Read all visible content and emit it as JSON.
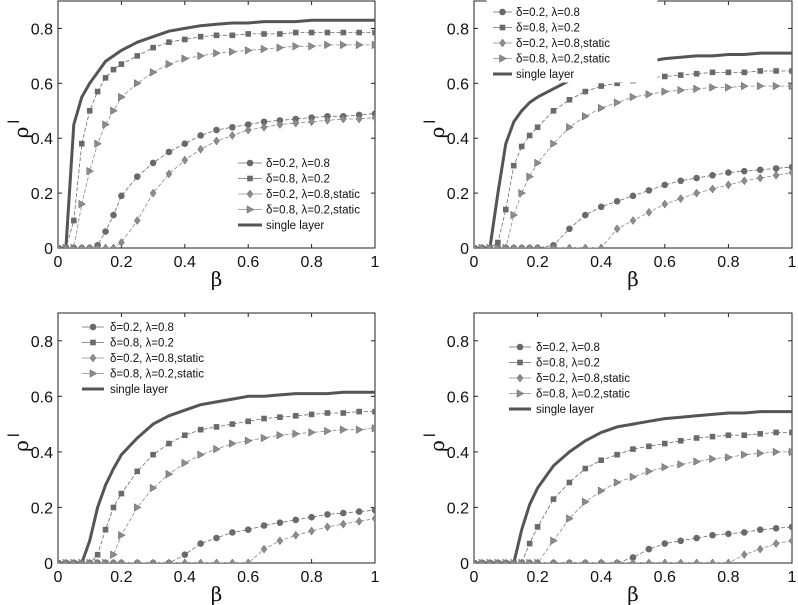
{
  "chart_data": [
    {
      "type": "line",
      "xlabel": "β",
      "ylabel": "ρ",
      "ylabel_sup": "l",
      "xlim": [
        0,
        1
      ],
      "ylim": [
        0,
        0.9
      ],
      "xticks": [
        "0",
        "0.2",
        "0.4",
        "0.6",
        "0.8",
        "1"
      ],
      "yticks": [
        "0",
        "0.2",
        "0.4",
        "0.6",
        "0.8"
      ],
      "legend_placement": "bottom-right",
      "x": [
        0,
        0.025,
        0.05,
        0.075,
        0.1,
        0.125,
        0.15,
        0.175,
        0.2,
        0.25,
        0.3,
        0.35,
        0.4,
        0.45,
        0.5,
        0.55,
        0.6,
        0.65,
        0.7,
        0.75,
        0.8,
        0.85,
        0.9,
        0.95,
        1
      ],
      "series": [
        {
          "name": "δ=0.2, λ=0.8",
          "marker": "circle",
          "values": [
            0,
            0,
            0,
            0,
            0,
            0.01,
            0.06,
            0.12,
            0.19,
            0.26,
            0.31,
            0.35,
            0.38,
            0.41,
            0.43,
            0.44,
            0.45,
            0.46,
            0.465,
            0.47,
            0.475,
            0.48,
            0.48,
            0.485,
            0.49
          ]
        },
        {
          "name": "δ=0.8, λ=0.2",
          "marker": "square",
          "values": [
            0,
            0,
            0.1,
            0.38,
            0.5,
            0.57,
            0.62,
            0.65,
            0.67,
            0.7,
            0.73,
            0.75,
            0.76,
            0.77,
            0.775,
            0.775,
            0.78,
            0.78,
            0.78,
            0.785,
            0.785,
            0.785,
            0.785,
            0.785,
            0.785
          ]
        },
        {
          "name": "δ=0.2, λ=0.8,static",
          "marker": "diamond",
          "values": [
            0,
            0,
            0,
            0,
            0,
            0,
            0,
            0,
            0.02,
            0.1,
            0.2,
            0.27,
            0.32,
            0.36,
            0.39,
            0.41,
            0.43,
            0.44,
            0.45,
            0.455,
            0.46,
            0.465,
            0.47,
            0.47,
            0.475
          ]
        },
        {
          "name": "δ=0.8, λ=0.2,static",
          "marker": "triangle-right",
          "values": [
            0,
            0,
            0,
            0.16,
            0.28,
            0.38,
            0.45,
            0.5,
            0.55,
            0.6,
            0.64,
            0.67,
            0.69,
            0.7,
            0.71,
            0.715,
            0.72,
            0.725,
            0.73,
            0.735,
            0.735,
            0.74,
            0.74,
            0.74,
            0.74
          ]
        },
        {
          "name": "single layer",
          "marker": "none",
          "values": [
            0,
            0,
            0.45,
            0.55,
            0.6,
            0.64,
            0.68,
            0.7,
            0.72,
            0.75,
            0.77,
            0.79,
            0.8,
            0.81,
            0.815,
            0.82,
            0.82,
            0.825,
            0.825,
            0.825,
            0.83,
            0.83,
            0.83,
            0.83,
            0.83
          ]
        }
      ]
    },
    {
      "type": "line",
      "xlabel": "β",
      "ylabel": "ρ",
      "ylabel_sup": "l",
      "xlim": [
        0,
        1
      ],
      "ylim": [
        0,
        0.9
      ],
      "xticks": [
        "0",
        "0.2",
        "0.4",
        "0.6",
        "0.8",
        "1"
      ],
      "yticks": [
        "0",
        "0.2",
        "0.4",
        "0.6",
        "0.8"
      ],
      "legend_placement": "top-left",
      "x": [
        0,
        0.025,
        0.05,
        0.075,
        0.1,
        0.125,
        0.15,
        0.175,
        0.2,
        0.25,
        0.3,
        0.35,
        0.4,
        0.45,
        0.5,
        0.55,
        0.6,
        0.65,
        0.7,
        0.75,
        0.8,
        0.85,
        0.9,
        0.95,
        1
      ],
      "series": [
        {
          "name": "δ=0.2, λ=0.8",
          "marker": "circle",
          "values": [
            0,
            0,
            0,
            0,
            0,
            0,
            0,
            0,
            0,
            0.01,
            0.07,
            0.12,
            0.15,
            0.17,
            0.19,
            0.21,
            0.23,
            0.245,
            0.255,
            0.265,
            0.275,
            0.28,
            0.285,
            0.29,
            0.295
          ]
        },
        {
          "name": "δ=0.8, λ=0.2",
          "marker": "square",
          "values": [
            0,
            0,
            0,
            0.02,
            0.14,
            0.3,
            0.37,
            0.41,
            0.44,
            0.5,
            0.54,
            0.57,
            0.59,
            0.6,
            0.61,
            0.62,
            0.625,
            0.63,
            0.635,
            0.64,
            0.64,
            0.64,
            0.645,
            0.645,
            0.645
          ]
        },
        {
          "name": "δ=0.2, λ=0.8,static",
          "marker": "diamond",
          "values": [
            0,
            0,
            0,
            0,
            0,
            0,
            0,
            0,
            0,
            0,
            0,
            0,
            0,
            0.07,
            0.1,
            0.13,
            0.16,
            0.18,
            0.2,
            0.215,
            0.23,
            0.245,
            0.255,
            0.265,
            0.275
          ]
        },
        {
          "name": "δ=0.8, λ=0.2,static",
          "marker": "triangle-right",
          "values": [
            0,
            0,
            0,
            0,
            0,
            0.12,
            0.2,
            0.26,
            0.31,
            0.38,
            0.44,
            0.48,
            0.51,
            0.53,
            0.55,
            0.56,
            0.57,
            0.575,
            0.58,
            0.585,
            0.585,
            0.59,
            0.59,
            0.59,
            0.59
          ]
        },
        {
          "name": "single layer",
          "marker": "none",
          "values": [
            0,
            0,
            0,
            0.2,
            0.38,
            0.46,
            0.5,
            0.53,
            0.55,
            0.58,
            0.61,
            0.63,
            0.65,
            0.66,
            0.67,
            0.68,
            0.69,
            0.695,
            0.7,
            0.7,
            0.705,
            0.705,
            0.71,
            0.71,
            0.71
          ]
        }
      ]
    },
    {
      "type": "line",
      "xlabel": "β",
      "ylabel": "ρ",
      "ylabel_sup": "l",
      "xlim": [
        0,
        1
      ],
      "ylim": [
        0,
        0.9
      ],
      "xticks": [
        "0",
        "0.2",
        "0.4",
        "0.6",
        "0.8",
        "1"
      ],
      "yticks": [
        "0",
        "0.2",
        "0.4",
        "0.6",
        "0.8"
      ],
      "legend_placement": "top-left",
      "x": [
        0,
        0.025,
        0.05,
        0.075,
        0.1,
        0.125,
        0.15,
        0.175,
        0.2,
        0.25,
        0.3,
        0.35,
        0.4,
        0.45,
        0.5,
        0.55,
        0.6,
        0.65,
        0.7,
        0.75,
        0.8,
        0.85,
        0.9,
        0.95,
        1
      ],
      "series": [
        {
          "name": "δ=0.2, λ=0.8",
          "marker": "circle",
          "values": [
            0,
            0,
            0,
            0,
            0,
            0,
            0,
            0,
            0,
            0,
            0,
            0,
            0.03,
            0.07,
            0.09,
            0.11,
            0.12,
            0.135,
            0.145,
            0.155,
            0.165,
            0.175,
            0.18,
            0.185,
            0.19
          ]
        },
        {
          "name": "δ=0.8, λ=0.2",
          "marker": "square",
          "values": [
            0,
            0,
            0,
            0,
            0,
            0.03,
            0.12,
            0.2,
            0.25,
            0.33,
            0.39,
            0.43,
            0.46,
            0.48,
            0.49,
            0.5,
            0.51,
            0.52,
            0.525,
            0.53,
            0.535,
            0.54,
            0.54,
            0.545,
            0.545
          ]
        },
        {
          "name": "δ=0.2, λ=0.8,static",
          "marker": "diamond",
          "values": [
            0,
            0,
            0,
            0,
            0,
            0,
            0,
            0,
            0,
            0,
            0,
            0,
            0,
            0,
            0,
            0,
            0,
            0.05,
            0.08,
            0.1,
            0.115,
            0.13,
            0.14,
            0.15,
            0.16
          ]
        },
        {
          "name": "δ=0.8, λ=0.2,static",
          "marker": "triangle-right",
          "values": [
            0,
            0,
            0,
            0,
            0,
            0,
            0,
            0.03,
            0.1,
            0.2,
            0.27,
            0.32,
            0.36,
            0.39,
            0.41,
            0.43,
            0.44,
            0.45,
            0.46,
            0.465,
            0.47,
            0.475,
            0.48,
            0.48,
            0.485
          ]
        },
        {
          "name": "single layer",
          "marker": "none",
          "values": [
            0,
            0,
            0,
            0,
            0.08,
            0.2,
            0.28,
            0.34,
            0.39,
            0.45,
            0.5,
            0.53,
            0.55,
            0.57,
            0.58,
            0.59,
            0.6,
            0.6,
            0.605,
            0.61,
            0.61,
            0.61,
            0.615,
            0.615,
            0.615
          ]
        }
      ]
    },
    {
      "type": "line",
      "xlabel": "β",
      "ylabel": "ρ",
      "ylabel_sup": "l",
      "xlim": [
        0,
        1
      ],
      "ylim": [
        0,
        0.9
      ],
      "xticks": [
        "0",
        "0.2",
        "0.4",
        "0.6",
        "0.8",
        "1"
      ],
      "yticks": [
        "0",
        "0.2",
        "0.4",
        "0.6",
        "0.8"
      ],
      "legend_placement": "top-left",
      "x": [
        0,
        0.025,
        0.05,
        0.075,
        0.1,
        0.125,
        0.15,
        0.175,
        0.2,
        0.25,
        0.3,
        0.35,
        0.4,
        0.45,
        0.5,
        0.55,
        0.6,
        0.65,
        0.7,
        0.75,
        0.8,
        0.85,
        0.9,
        0.95,
        1
      ],
      "series": [
        {
          "name": "δ=0.2, λ=0.8",
          "marker": "circle",
          "values": [
            0,
            0,
            0,
            0,
            0,
            0,
            0,
            0,
            0,
            0,
            0,
            0,
            0,
            0,
            0.02,
            0.05,
            0.07,
            0.08,
            0.09,
            0.1,
            0.105,
            0.11,
            0.12,
            0.125,
            0.13
          ]
        },
        {
          "name": "δ=0.8, λ=0.2",
          "marker": "square",
          "values": [
            0,
            0,
            0,
            0,
            0,
            0,
            0,
            0.07,
            0.13,
            0.23,
            0.29,
            0.34,
            0.37,
            0.39,
            0.41,
            0.42,
            0.43,
            0.44,
            0.45,
            0.455,
            0.46,
            0.46,
            0.465,
            0.47,
            0.47
          ]
        },
        {
          "name": "δ=0.2, λ=0.8,static",
          "marker": "diamond",
          "values": [
            0,
            0,
            0,
            0,
            0,
            0,
            0,
            0,
            0,
            0,
            0,
            0,
            0,
            0,
            0,
            0,
            0,
            0,
            0,
            0,
            0,
            0.03,
            0.05,
            0.07,
            0.08
          ]
        },
        {
          "name": "δ=0.8, λ=0.2,static",
          "marker": "triangle-right",
          "values": [
            0,
            0,
            0,
            0,
            0,
            0,
            0,
            0,
            0,
            0.08,
            0.16,
            0.22,
            0.26,
            0.29,
            0.31,
            0.33,
            0.345,
            0.355,
            0.365,
            0.375,
            0.38,
            0.39,
            0.395,
            0.4,
            0.4
          ]
        },
        {
          "name": "single layer",
          "marker": "none",
          "values": [
            0,
            0,
            0,
            0,
            0,
            0,
            0.12,
            0.21,
            0.27,
            0.35,
            0.4,
            0.44,
            0.47,
            0.49,
            0.5,
            0.51,
            0.52,
            0.525,
            0.53,
            0.535,
            0.54,
            0.54,
            0.545,
            0.545,
            0.545
          ]
        }
      ]
    }
  ],
  "colors": {
    "single": "#555555",
    "circle": "#6a6a6a",
    "square": "#6a6a6a",
    "diamond": "#8c8c8c",
    "triangle": "#8c8c8c",
    "axis": "#222222"
  }
}
